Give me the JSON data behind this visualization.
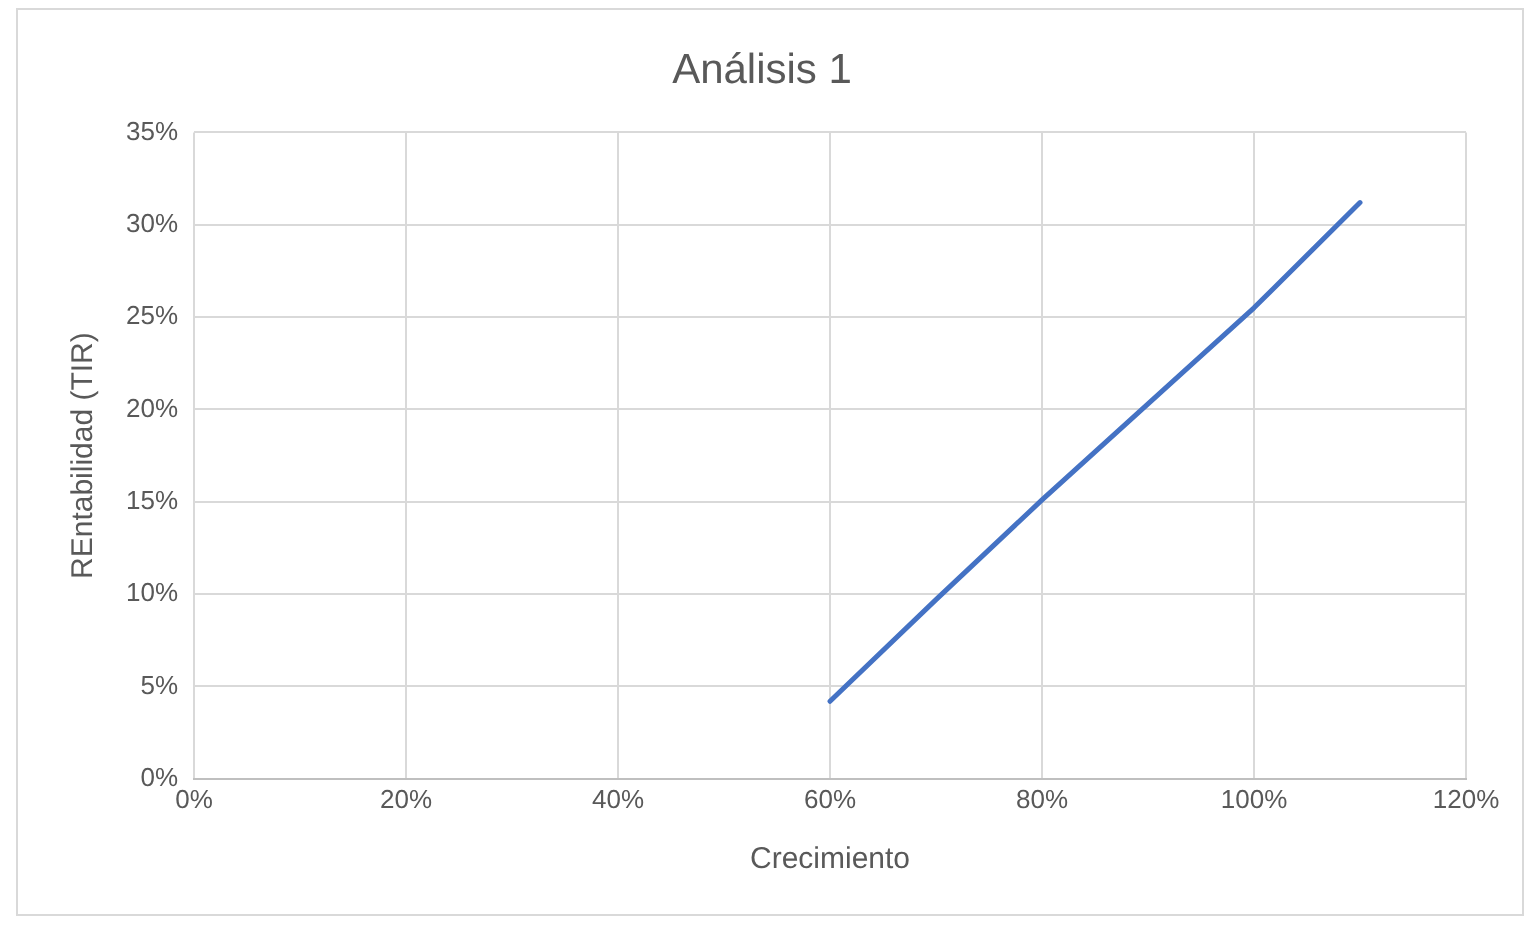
{
  "chart_data": {
    "type": "line",
    "title": "Análisis 1",
    "xlabel": "Crecimiento",
    "ylabel": "REntabilidad (TIR)",
    "x": [
      0.6,
      0.7,
      0.8,
      0.9,
      1.0,
      1.1
    ],
    "series": [
      {
        "color": "#4472c4",
        "values": [
          0.042,
          0.097,
          0.151,
          0.203,
          0.255,
          0.312
        ]
      }
    ],
    "xlim": [
      0,
      1.2
    ],
    "xticks": [
      {
        "value": 0,
        "label": "0%"
      },
      {
        "value": 0.2,
        "label": "20%"
      },
      {
        "value": 0.4,
        "label": "40%"
      },
      {
        "value": 0.6,
        "label": "60%"
      },
      {
        "value": 0.8,
        "label": "80%"
      },
      {
        "value": 1.0,
        "label": "100%"
      },
      {
        "value": 1.2,
        "label": "120%"
      }
    ],
    "ylim": [
      0,
      0.35
    ],
    "yticks": [
      {
        "value": 0,
        "label": "0%"
      },
      {
        "value": 0.05,
        "label": "5%"
      },
      {
        "value": 0.1,
        "label": "10%"
      },
      {
        "value": 0.15,
        "label": "15%"
      },
      {
        "value": 0.2,
        "label": "20%"
      },
      {
        "value": 0.25,
        "label": "25%"
      },
      {
        "value": 0.3,
        "label": "30%"
      },
      {
        "value": 0.35,
        "label": "35%"
      }
    ],
    "grid": true,
    "legend": false,
    "marker": "none",
    "line_style": "solid"
  }
}
